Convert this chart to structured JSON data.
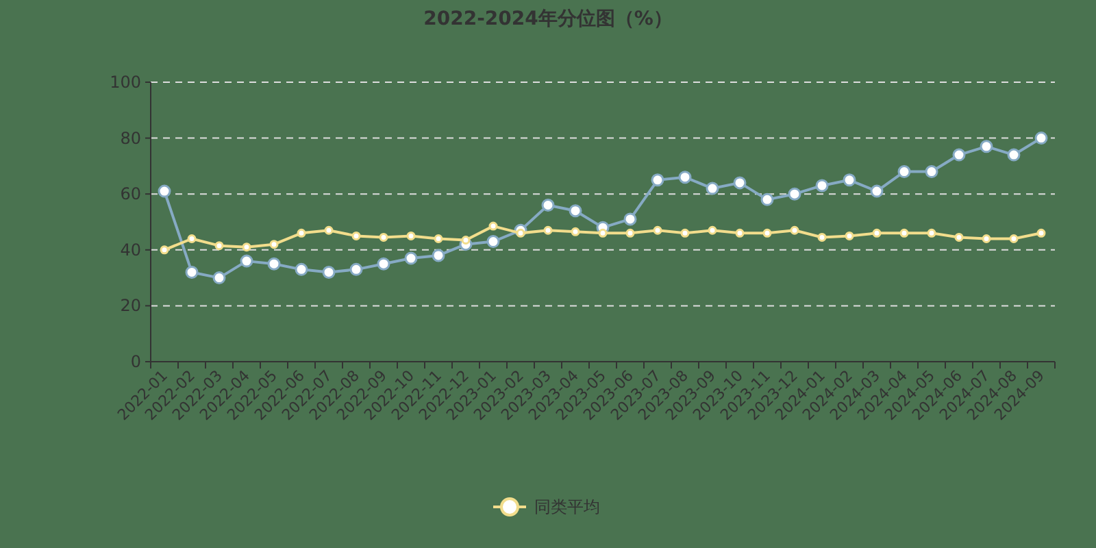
{
  "chart_data": {
    "type": "line",
    "title": "2022-2024年分位图（%）",
    "categories": [
      "2022-01",
      "2022-02",
      "2022-03",
      "2022-04",
      "2022-05",
      "2022-06",
      "2022-07",
      "2022-08",
      "2022-09",
      "2022-10",
      "2022-11",
      "2022-12",
      "2023-01",
      "2023-02",
      "2023-03",
      "2023-04",
      "2023-05",
      "2023-06",
      "2023-07",
      "2023-08",
      "2023-09",
      "2023-10",
      "2023-11",
      "2023-12",
      "2024-01",
      "2024-02",
      "2024-03",
      "2024-04",
      "2024-05",
      "2024-06",
      "2024-07",
      "2024-08",
      "2024-09"
    ],
    "series": [
      {
        "color": "#86aac4",
        "values": [
          61,
          32,
          30,
          36,
          35,
          33,
          32,
          33,
          35,
          37,
          38,
          42,
          43,
          47,
          56,
          54,
          48,
          51,
          65,
          66,
          62,
          64,
          58,
          60,
          63,
          65,
          61,
          68,
          68,
          74,
          77,
          74,
          80
        ]
      },
      {
        "name": "同类平均",
        "color": "#f2dd8c",
        "values": [
          40,
          44,
          41.5,
          41,
          42,
          46,
          47,
          45,
          44.5,
          45,
          44,
          43.5,
          48.5,
          46,
          47,
          46.5,
          46,
          46,
          47,
          46,
          47,
          46,
          46,
          47,
          44.5,
          45,
          46,
          46,
          46,
          44.5,
          44,
          44,
          46
        ]
      }
    ],
    "ylim": [
      0,
      100
    ],
    "yticks": [
      0,
      20,
      40,
      60,
      80,
      100
    ],
    "grid": "y",
    "legend": "bottom",
    "marker": "circle",
    "line_style": "solid"
  }
}
